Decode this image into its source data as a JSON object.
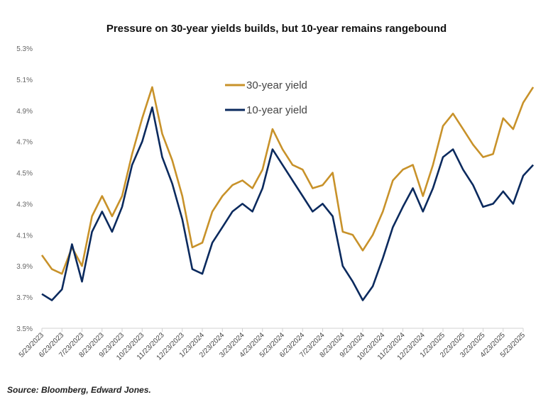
{
  "chart_data": {
    "type": "line",
    "title": "Pressure on 30-year yields builds, but 10-year remains rangebound",
    "xlabel": "",
    "ylabel": "",
    "ylim": [
      3.5,
      5.3
    ],
    "yticks": [
      "3.5%",
      "3.7%",
      "3.9%",
      "4.1%",
      "4.3%",
      "4.5%",
      "4.7%",
      "4.9%",
      "5.1%",
      "5.3%"
    ],
    "ytick_values": [
      3.5,
      3.7,
      3.9,
      4.1,
      4.3,
      4.5,
      4.7,
      4.9,
      5.1,
      5.3
    ],
    "xticks": [
      "5/23/2023",
      "6/23/2023",
      "7/23/2023",
      "8/23/2023",
      "9/23/2023",
      "10/23/2023",
      "11/23/2023",
      "12/23/2023",
      "1/23/2024",
      "2/23/2024",
      "3/23/2024",
      "4/23/2024",
      "5/23/2024",
      "6/23/2024",
      "7/23/2024",
      "8/23/2024",
      "9/23/2024",
      "10/23/2024",
      "11/23/2024",
      "12/23/2024",
      "1/23/2025",
      "2/23/2025",
      "3/23/2025",
      "4/23/2025",
      "5/23/2025"
    ],
    "x_months_from_start_step": 0.5,
    "legend_position": "top-center",
    "grid": false,
    "series": [
      {
        "name": "30-year yield",
        "color": "#C8922A",
        "values": [
          3.97,
          3.88,
          3.85,
          4.02,
          3.9,
          4.22,
          4.35,
          4.22,
          4.35,
          4.62,
          4.85,
          5.05,
          4.75,
          4.58,
          4.35,
          4.02,
          4.05,
          4.25,
          4.35,
          4.42,
          4.45,
          4.4,
          4.52,
          4.78,
          4.65,
          4.55,
          4.52,
          4.4,
          4.42,
          4.5,
          4.12,
          4.1,
          4.0,
          4.1,
          4.25,
          4.45,
          4.52,
          4.55,
          4.35,
          4.55,
          4.8,
          4.88,
          4.78,
          4.68,
          4.6,
          4.62,
          4.85,
          4.78,
          4.95,
          5.05
        ]
      },
      {
        "name": "10-year yield",
        "color": "#0B2A5E",
        "values": [
          3.72,
          3.68,
          3.75,
          4.04,
          3.8,
          4.12,
          4.25,
          4.12,
          4.28,
          4.55,
          4.7,
          4.92,
          4.6,
          4.43,
          4.2,
          3.88,
          3.85,
          4.05,
          4.15,
          4.25,
          4.3,
          4.25,
          4.4,
          4.65,
          4.55,
          4.45,
          4.35,
          4.25,
          4.3,
          4.22,
          3.9,
          3.8,
          3.68,
          3.77,
          3.95,
          4.15,
          4.28,
          4.4,
          4.25,
          4.4,
          4.6,
          4.65,
          4.52,
          4.42,
          4.28,
          4.3,
          4.38,
          4.3,
          4.48,
          4.55
        ]
      }
    ]
  },
  "source": "Source: Bloomberg, Edward Jones."
}
